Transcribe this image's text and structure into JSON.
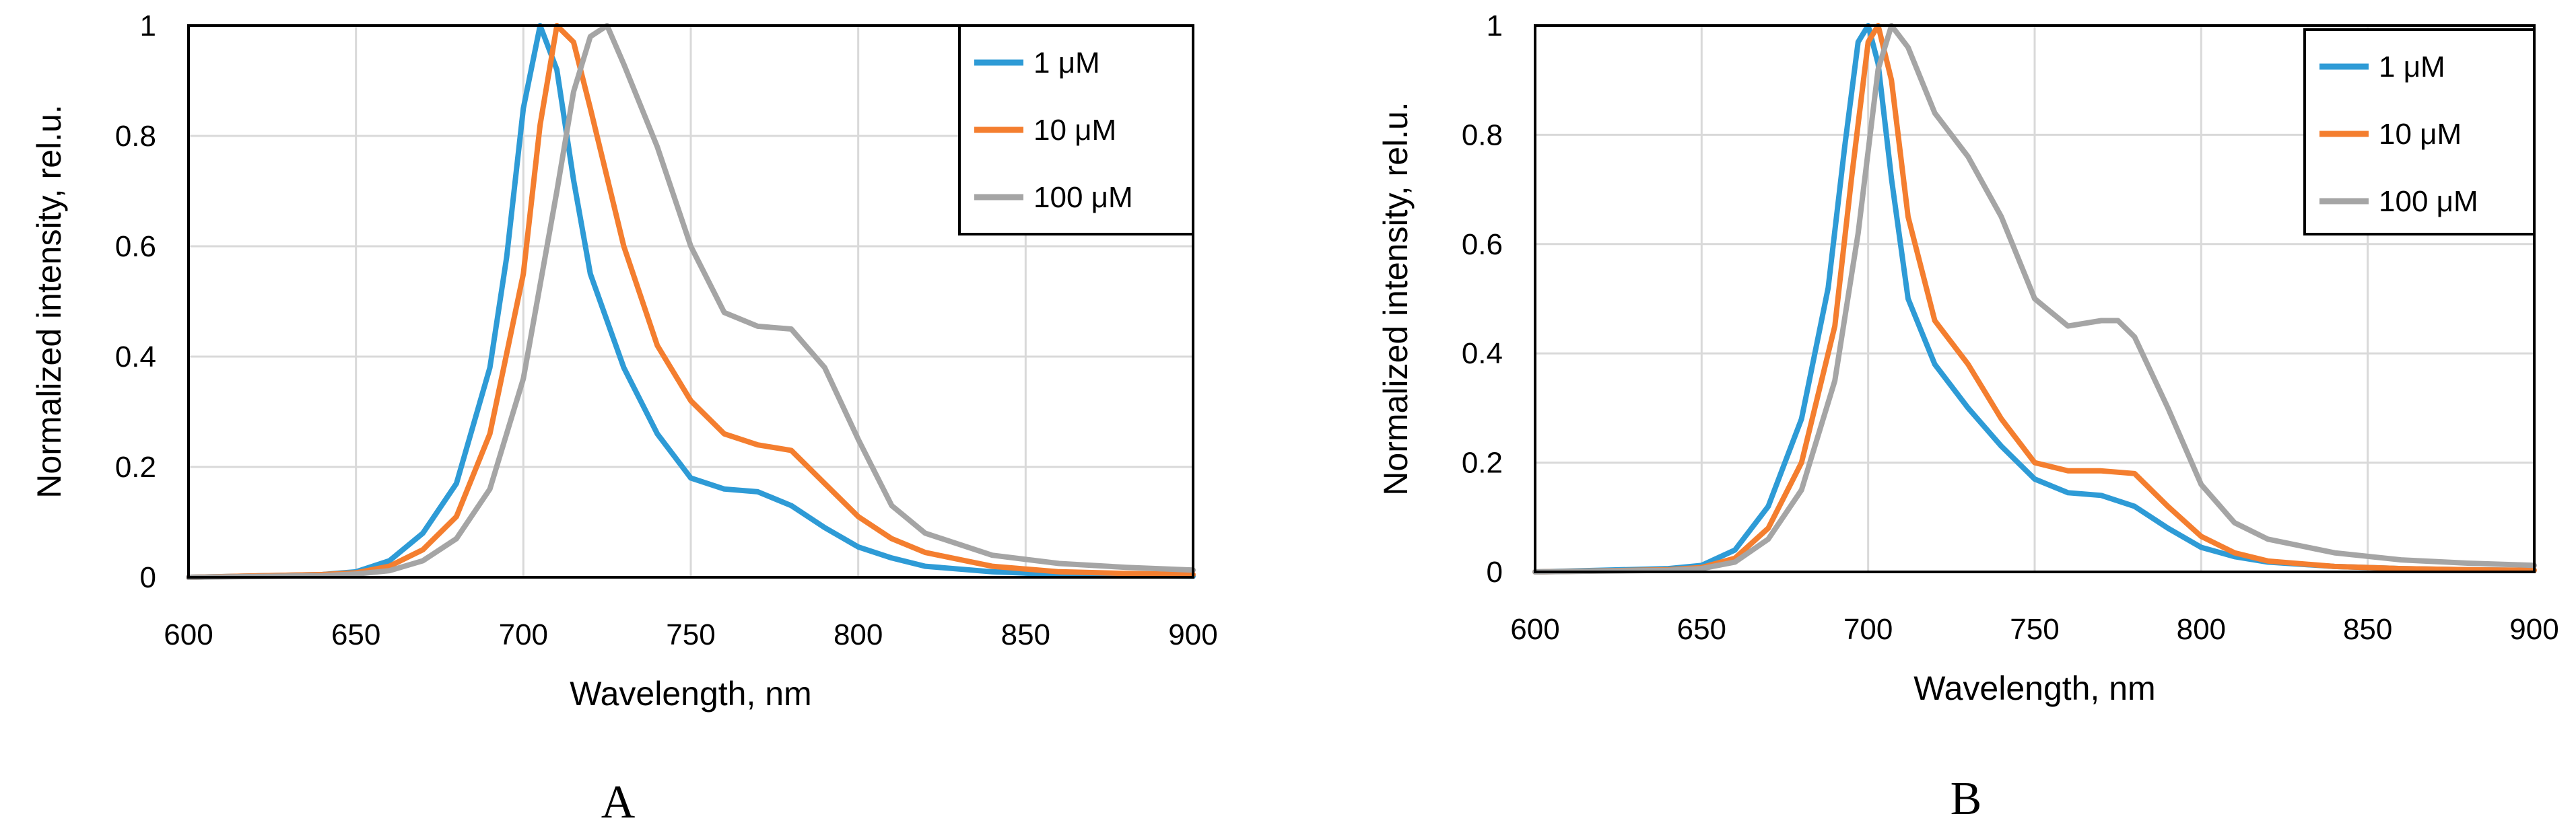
{
  "chart_data": [
    {
      "type": "line",
      "panel_label": "A",
      "xlabel": "Wavelength, nm",
      "ylabel": "Normalized intensity, rel.u.",
      "xlim": [
        600,
        900
      ],
      "ylim": [
        0,
        1
      ],
      "xticks": [
        600,
        650,
        700,
        750,
        800,
        850,
        900
      ],
      "yticks": [
        0,
        0.2,
        0.4,
        0.6,
        0.8,
        1
      ],
      "xtick_labels": [
        "600",
        "650",
        "700",
        "750",
        "800",
        "850",
        "900"
      ],
      "ytick_labels": [
        "0",
        "0.2",
        "0.4",
        "0.6",
        "0.8",
        "1"
      ],
      "grid": true,
      "legend_position": "top-right",
      "series": [
        {
          "name": "1 μM",
          "color": "#2E9BD6",
          "x": [
            600,
            640,
            650,
            660,
            670,
            680,
            690,
            695,
            700,
            705,
            710,
            715,
            720,
            730,
            740,
            750,
            760,
            770,
            780,
            790,
            800,
            810,
            820,
            840,
            860,
            880,
            900
          ],
          "y": [
            0,
            0.005,
            0.01,
            0.03,
            0.08,
            0.17,
            0.38,
            0.58,
            0.85,
            1.0,
            0.92,
            0.72,
            0.55,
            0.38,
            0.26,
            0.18,
            0.16,
            0.155,
            0.13,
            0.09,
            0.055,
            0.035,
            0.02,
            0.01,
            0.005,
            0.003,
            0.002
          ]
        },
        {
          "name": "10 μM",
          "color": "#F47E2F",
          "x": [
            600,
            640,
            650,
            660,
            670,
            680,
            690,
            700,
            705,
            710,
            715,
            720,
            730,
            740,
            750,
            760,
            770,
            780,
            790,
            800,
            810,
            820,
            840,
            860,
            880,
            900
          ],
          "y": [
            0,
            0.005,
            0.008,
            0.02,
            0.05,
            0.11,
            0.26,
            0.55,
            0.82,
            1.0,
            0.97,
            0.85,
            0.6,
            0.42,
            0.32,
            0.26,
            0.24,
            0.23,
            0.17,
            0.11,
            0.07,
            0.045,
            0.02,
            0.01,
            0.007,
            0.005
          ]
        },
        {
          "name": "100 μM",
          "color": "#A5A5A5",
          "x": [
            600,
            640,
            650,
            660,
            670,
            680,
            690,
            700,
            710,
            715,
            720,
            725,
            730,
            740,
            750,
            760,
            770,
            780,
            790,
            800,
            810,
            820,
            840,
            860,
            880,
            900
          ],
          "y": [
            0,
            0.003,
            0.006,
            0.012,
            0.03,
            0.07,
            0.16,
            0.36,
            0.7,
            0.88,
            0.98,
            1.0,
            0.93,
            0.78,
            0.6,
            0.48,
            0.455,
            0.45,
            0.38,
            0.25,
            0.13,
            0.08,
            0.04,
            0.025,
            0.018,
            0.013
          ]
        }
      ]
    },
    {
      "type": "line",
      "panel_label": "B",
      "xlabel": "Wavelength, nm",
      "ylabel": "Normalized intensity, rel.u.",
      "xlim": [
        600,
        900
      ],
      "ylim": [
        0,
        1
      ],
      "xticks": [
        600,
        650,
        700,
        750,
        800,
        850,
        900
      ],
      "yticks": [
        0,
        0.2,
        0.4,
        0.6,
        0.8,
        1
      ],
      "xtick_labels": [
        "600",
        "650",
        "700",
        "750",
        "800",
        "850",
        "900"
      ],
      "ytick_labels": [
        "0",
        "0.2",
        "0.4",
        "0.6",
        "0.8",
        "1"
      ],
      "grid": true,
      "legend_position": "top-right",
      "series": [
        {
          "name": "1 μM",
          "color": "#2E9BD6",
          "x": [
            600,
            640,
            650,
            660,
            670,
            680,
            688,
            693,
            697,
            700,
            703,
            707,
            712,
            720,
            730,
            740,
            750,
            760,
            770,
            780,
            790,
            800,
            810,
            820,
            840,
            860,
            880,
            900
          ],
          "y": [
            0,
            0.006,
            0.012,
            0.04,
            0.12,
            0.28,
            0.52,
            0.78,
            0.97,
            1.0,
            0.93,
            0.72,
            0.5,
            0.38,
            0.3,
            0.23,
            0.17,
            0.145,
            0.14,
            0.12,
            0.08,
            0.045,
            0.028,
            0.018,
            0.01,
            0.006,
            0.004,
            0.003
          ]
        },
        {
          "name": "10 μM",
          "color": "#F47E2F",
          "x": [
            600,
            640,
            650,
            660,
            670,
            680,
            690,
            695,
            700,
            703,
            707,
            712,
            720,
            730,
            740,
            750,
            760,
            770,
            780,
            790,
            800,
            810,
            820,
            840,
            860,
            880,
            900
          ],
          "y": [
            0,
            0.004,
            0.008,
            0.025,
            0.08,
            0.2,
            0.45,
            0.72,
            0.97,
            1.0,
            0.9,
            0.65,
            0.46,
            0.38,
            0.28,
            0.2,
            0.185,
            0.185,
            0.18,
            0.12,
            0.065,
            0.035,
            0.02,
            0.01,
            0.006,
            0.004,
            0.003
          ]
        },
        {
          "name": "100 μM",
          "color": "#A5A5A5",
          "x": [
            600,
            640,
            650,
            660,
            670,
            680,
            690,
            697,
            703,
            707,
            712,
            720,
            730,
            740,
            750,
            760,
            770,
            775,
            780,
            790,
            800,
            810,
            820,
            840,
            860,
            880,
            900
          ],
          "y": [
            0,
            0.003,
            0.006,
            0.018,
            0.06,
            0.15,
            0.35,
            0.62,
            0.92,
            1.0,
            0.96,
            0.84,
            0.76,
            0.65,
            0.5,
            0.45,
            0.46,
            0.46,
            0.43,
            0.3,
            0.16,
            0.09,
            0.06,
            0.035,
            0.022,
            0.016,
            0.012
          ]
        }
      ]
    }
  ]
}
